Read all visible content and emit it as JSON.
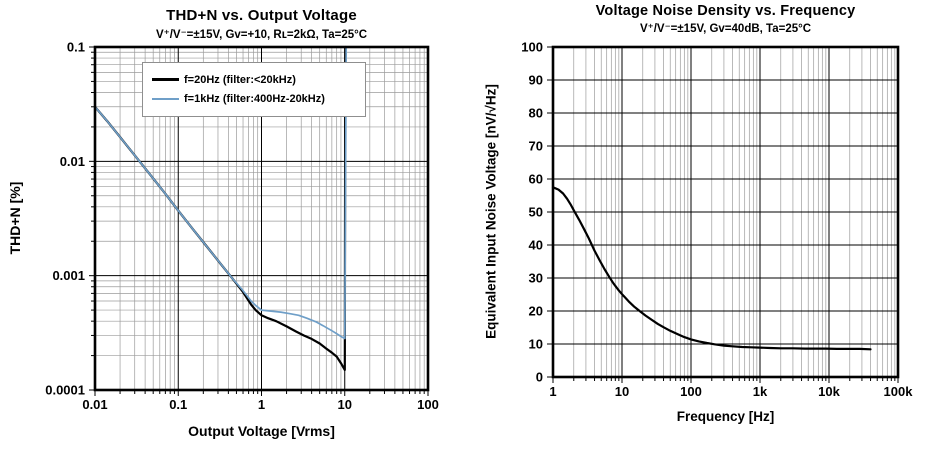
{
  "chart_data": [
    {
      "type": "line",
      "title": "THD+N vs. Output Voltage",
      "subtitle": "V⁺/V⁻=±15V, Gv=+10, Rʟ=2kΩ, Ta=25°C",
      "xlabel": "Output Voltage [Vrms]",
      "ylabel": "THD+N [%]",
      "x_scale": "log",
      "y_scale": "log",
      "x_range": [
        0.01,
        100
      ],
      "y_range": [
        0.0001,
        0.1
      ],
      "x_ticks": {
        "values": [
          0.01,
          0.1,
          1,
          10,
          100
        ],
        "labels": [
          "0.01",
          "0.1",
          "1",
          "10",
          "100"
        ]
      },
      "y_ticks": {
        "values": [
          0.1,
          0.01,
          0.001,
          0.0001
        ],
        "labels": [
          "0.1",
          "0.01",
          "0.001",
          "0.0001"
        ]
      },
      "grid": "log-log with minor gridlines",
      "legend": {
        "position": "top-center",
        "entries": [
          {
            "label": "f=20Hz (filter:<20kHz)",
            "color": "#000000"
          },
          {
            "label": "f=1kHz (filter:400Hz-20kHz)",
            "color": "#6f9fc8"
          }
        ]
      },
      "series": [
        {
          "name": "f20Hz",
          "color": "#000000",
          "width": 2.2,
          "points": [
            [
              0.01,
              0.03
            ],
            [
              0.014,
              0.0225
            ],
            [
              0.02,
              0.0163
            ],
            [
              0.03,
              0.0113
            ],
            [
              0.045,
              0.0078
            ],
            [
              0.07,
              0.0052
            ],
            [
              0.1,
              0.0037
            ],
            [
              0.15,
              0.00255
            ],
            [
              0.22,
              0.0018
            ],
            [
              0.32,
              0.00128
            ],
            [
              0.45,
              0.00094
            ],
            [
              0.6,
              0.00072
            ],
            [
              0.75,
              0.00056
            ],
            [
              0.85,
              0.0005
            ],
            [
              1.0,
              0.00045
            ],
            [
              1.2,
              0.000425
            ],
            [
              1.5,
              0.0004
            ],
            [
              2.0,
              0.00036
            ],
            [
              2.6,
              0.000325
            ],
            [
              3.2,
              0.0003
            ],
            [
              4.0,
              0.00028
            ],
            [
              5.0,
              0.000255
            ],
            [
              6.0,
              0.00023
            ],
            [
              7.0,
              0.000212
            ],
            [
              8.0,
              0.000196
            ],
            [
              9.0,
              0.000172
            ],
            [
              9.6,
              0.000158
            ],
            [
              10.0,
              0.00015
            ],
            [
              10.15,
              0.1
            ]
          ]
        },
        {
          "name": "f1kHz",
          "color": "#6f9fc8",
          "width": 1.7,
          "points": [
            [
              0.01,
              0.03
            ],
            [
              0.014,
              0.0225
            ],
            [
              0.02,
              0.0163
            ],
            [
              0.03,
              0.0113
            ],
            [
              0.045,
              0.0078
            ],
            [
              0.07,
              0.0052
            ],
            [
              0.1,
              0.0037
            ],
            [
              0.15,
              0.00255
            ],
            [
              0.22,
              0.0018
            ],
            [
              0.32,
              0.00128
            ],
            [
              0.45,
              0.00094
            ],
            [
              0.6,
              0.00074
            ],
            [
              0.75,
              0.0006
            ],
            [
              0.85,
              0.00055
            ],
            [
              1.0,
              0.0005
            ],
            [
              1.3,
              0.00049
            ],
            [
              1.7,
              0.00048
            ],
            [
              2.2,
              0.000465
            ],
            [
              2.8,
              0.00045
            ],
            [
              3.5,
              0.000425
            ],
            [
              4.5,
              0.000395
            ],
            [
              5.5,
              0.000365
            ],
            [
              6.5,
              0.00034
            ],
            [
              7.5,
              0.00032
            ],
            [
              8.5,
              0.000302
            ],
            [
              9.3,
              0.00029
            ],
            [
              10.0,
              0.000282
            ],
            [
              10.4,
              0.1
            ]
          ]
        }
      ]
    },
    {
      "type": "line",
      "title": "Voltage Noise Density vs. Frequency",
      "subtitle": "V⁺/V⁻=±15V, Gv=40dB, Ta=25°C",
      "xlabel": "Frequency [Hz]",
      "ylabel": "Equivalent Input Noise Voltage [nV/√Hz]",
      "x_scale": "log",
      "y_scale": "linear",
      "x_range": [
        1,
        100000
      ],
      "y_range": [
        0,
        100
      ],
      "x_ticks": {
        "values": [
          1,
          10,
          100,
          1000,
          10000,
          100000
        ],
        "labels": [
          "1",
          "10",
          "100",
          "1k",
          "10k",
          "100k"
        ]
      },
      "y_ticks": {
        "values": [
          100,
          90,
          80,
          70,
          60,
          50,
          40,
          30,
          20,
          10,
          0
        ],
        "labels": [
          "100",
          "90",
          "80",
          "70",
          "60",
          "50",
          "40",
          "30",
          "20",
          "10",
          "0"
        ]
      },
      "grid": "semilog-x with minor gridlines, horizontal lines every 10",
      "series": [
        {
          "name": "noise-density",
          "color": "#000000",
          "width": 2.2,
          "points": [
            [
              1,
              57.5
            ],
            [
              1.2,
              56.8
            ],
            [
              1.4,
              55.6
            ],
            [
              1.6,
              54.0
            ],
            [
              1.8,
              52.3
            ],
            [
              2.0,
              50.5
            ],
            [
              2.4,
              47.6
            ],
            [
              2.8,
              44.9
            ],
            [
              3.3,
              42.0
            ],
            [
              4.0,
              38.3
            ],
            [
              4.7,
              35.5
            ],
            [
              5.5,
              32.9
            ],
            [
              6.5,
              30.4
            ],
            [
              7.5,
              28.4
            ],
            [
              9.0,
              26.2
            ],
            [
              10.5,
              24.6
            ],
            [
              12.5,
              22.9
            ],
            [
              15,
              21.3
            ],
            [
              18,
              20.0
            ],
            [
              22,
              18.6
            ],
            [
              27,
              17.3
            ],
            [
              33,
              16.1
            ],
            [
              40,
              15.1
            ],
            [
              50,
              14.0
            ],
            [
              65,
              12.9
            ],
            [
              80,
              12.1
            ],
            [
              100,
              11.4
            ],
            [
              130,
              10.8
            ],
            [
              170,
              10.3
            ],
            [
              220,
              9.9
            ],
            [
              300,
              9.5
            ],
            [
              400,
              9.3
            ],
            [
              550,
              9.1
            ],
            [
              750,
              9.0
            ],
            [
              1000,
              8.9
            ],
            [
              1400,
              8.8
            ],
            [
              2000,
              8.7
            ],
            [
              3000,
              8.7
            ],
            [
              4500,
              8.6
            ],
            [
              6500,
              8.6
            ],
            [
              9000,
              8.6
            ],
            [
              13000,
              8.5
            ],
            [
              19000,
              8.5
            ],
            [
              28000,
              8.5
            ],
            [
              40000,
              8.4
            ]
          ]
        }
      ]
    }
  ]
}
